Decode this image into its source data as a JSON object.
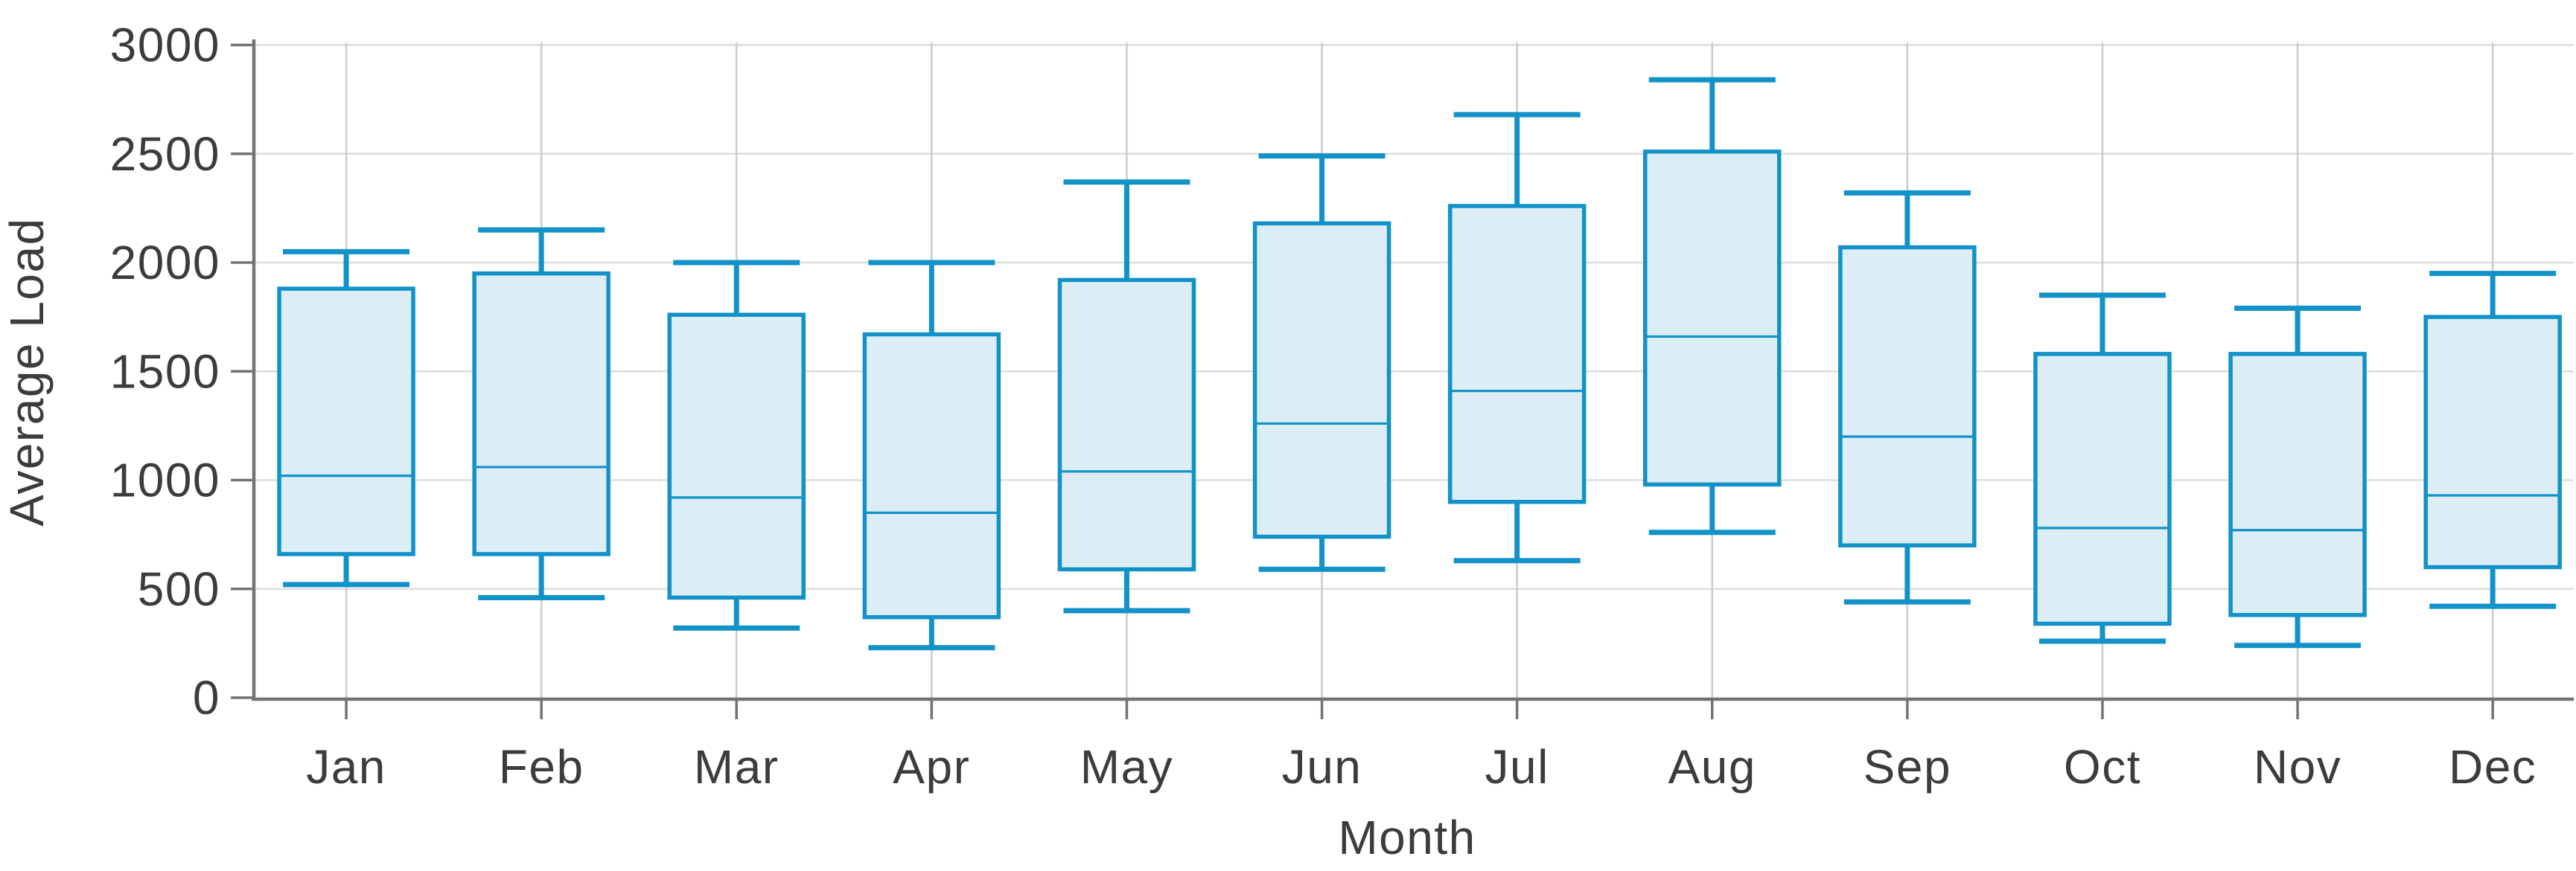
{
  "page": {
    "background_color": "#ffffff"
  },
  "chart_data": {
    "type": "boxplot",
    "title": "",
    "xlabel": "Month",
    "ylabel": "Average Load",
    "categories": [
      "Jan",
      "Feb",
      "Mar",
      "Apr",
      "May",
      "Jun",
      "Jul",
      "Aug",
      "Sep",
      "Oct",
      "Nov",
      "Dec"
    ],
    "yticks": [
      0,
      500,
      1000,
      1500,
      2000,
      2500,
      3000
    ],
    "ylim": [
      0,
      3000
    ],
    "grid": true,
    "legend": "none",
    "series": [
      {
        "name": "Average Load",
        "boxes": [
          {
            "category": "Jan",
            "min": 520,
            "q1": 660,
            "median": 1020,
            "q3": 1880,
            "max": 2050
          },
          {
            "category": "Feb",
            "min": 460,
            "q1": 660,
            "median": 1060,
            "q3": 1950,
            "max": 2150
          },
          {
            "category": "Mar",
            "min": 320,
            "q1": 460,
            "median": 920,
            "q3": 1760,
            "max": 2000
          },
          {
            "category": "Apr",
            "min": 230,
            "q1": 370,
            "median": 850,
            "q3": 1670,
            "max": 2000
          },
          {
            "category": "May",
            "min": 400,
            "q1": 590,
            "median": 1040,
            "q3": 1920,
            "max": 2370
          },
          {
            "category": "Jun",
            "min": 590,
            "q1": 740,
            "median": 1260,
            "q3": 2180,
            "max": 2490
          },
          {
            "category": "Jul",
            "min": 630,
            "q1": 900,
            "median": 1410,
            "q3": 2260,
            "max": 2680
          },
          {
            "category": "Aug",
            "min": 760,
            "q1": 980,
            "median": 1660,
            "q3": 2510,
            "max": 2840
          },
          {
            "category": "Sep",
            "min": 440,
            "q1": 700,
            "median": 1200,
            "q3": 2070,
            "max": 2320
          },
          {
            "category": "Oct",
            "min": 260,
            "q1": 340,
            "median": 780,
            "q3": 1580,
            "max": 1850
          },
          {
            "category": "Nov",
            "min": 240,
            "q1": 380,
            "median": 770,
            "q3": 1580,
            "max": 1790
          },
          {
            "category": "Dec",
            "min": 420,
            "q1": 600,
            "median": 930,
            "q3": 1750,
            "max": 1950
          }
        ]
      }
    ],
    "colors": {
      "box_stroke": "#1292c8",
      "box_fill": "#dcedf6",
      "median_line": "#1292c8",
      "h_gridline": "#dedede",
      "v_gridline": "#cdcdcd",
      "axis_line": "#737373",
      "text": "#3c3c3c"
    }
  }
}
